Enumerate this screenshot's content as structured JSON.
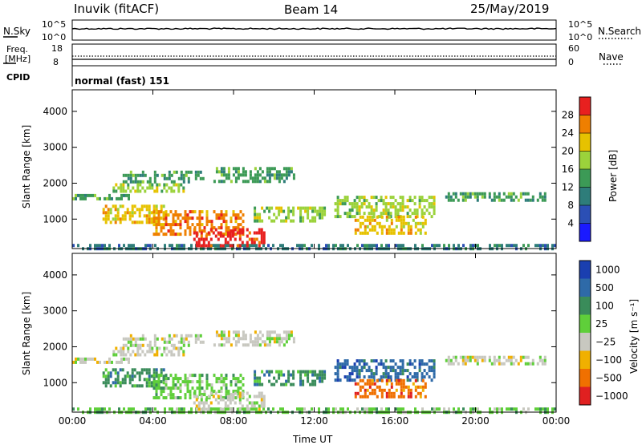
{
  "header": {
    "station": "Inuvik (fitACF)",
    "beam": "Beam 14",
    "date": "25/May/2019"
  },
  "sky_panel": {
    "left_label": "N.Sky",
    "right_label": "N.Search",
    "left_ticks": [
      "10^5",
      "10^0"
    ],
    "right_ticks": [
      "10^5",
      "10^0"
    ]
  },
  "freq_panel": {
    "left_label": "Freq.",
    "left_unit": "[MHz]",
    "right_label": "Nave",
    "left_ticks": [
      "18",
      "8"
    ],
    "right_ticks": [
      "60",
      "0"
    ]
  },
  "cpid": {
    "label": "CPID",
    "value": "normal (fast) 151"
  },
  "chart_data": [
    {
      "type": "heatmap",
      "name": "power",
      "ylabel": "Slant Range [km]",
      "xlabel": "Time UT",
      "x_ticks": [
        "00:00",
        "04:00",
        "08:00",
        "12:00",
        "16:00",
        "20:00",
        "00:00"
      ],
      "y_ticks": [
        "1000",
        "2000",
        "3000",
        "4000"
      ],
      "ylim": [
        180,
        4600
      ],
      "xlim_hours": [
        0,
        24
      ],
      "colorbar": {
        "label": "Power [dB]",
        "ticks": [
          "4",
          "8",
          "12",
          "16",
          "20",
          "24",
          "28"
        ],
        "range": [
          0,
          30
        ],
        "colors": [
          "#1a1aff",
          "#2b4fb5",
          "#2e7d7a",
          "#3c9a56",
          "#9bd23b",
          "#e6c200",
          "#ef7f00",
          "#e8201f"
        ]
      },
      "regions": [
        {
          "t0": 0.0,
          "t1": 24.0,
          "r0": 200,
          "r1": 310,
          "level": 2
        },
        {
          "t0": 2.5,
          "t1": 6.5,
          "r0": 2050,
          "r1": 2350,
          "level": 3
        },
        {
          "t0": 2.0,
          "t1": 5.5,
          "r0": 1750,
          "r1": 2000,
          "level": 4
        },
        {
          "t0": 7.0,
          "t1": 11.0,
          "r0": 2050,
          "r1": 2450,
          "level": 3
        },
        {
          "t0": 0.0,
          "t1": 3.0,
          "r0": 1550,
          "r1": 1700,
          "level": 3
        },
        {
          "t0": 1.5,
          "t1": 4.5,
          "r0": 900,
          "r1": 1400,
          "level": 5
        },
        {
          "t0": 4.0,
          "t1": 8.5,
          "r0": 550,
          "r1": 1250,
          "level": 6
        },
        {
          "t0": 6.0,
          "t1": 9.5,
          "r0": 250,
          "r1": 750,
          "level": 7
        },
        {
          "t0": 9.0,
          "t1": 12.5,
          "r0": 950,
          "r1": 1350,
          "level": 4
        },
        {
          "t0": 13.0,
          "t1": 18.0,
          "r0": 1100,
          "r1": 1650,
          "level": 4
        },
        {
          "t0": 14.0,
          "t1": 17.5,
          "r0": 600,
          "r1": 1100,
          "level": 5
        },
        {
          "t0": 18.5,
          "t1": 23.5,
          "r0": 1550,
          "r1": 1750,
          "level": 3
        }
      ]
    },
    {
      "type": "heatmap",
      "name": "velocity",
      "ylabel": "Slant Range [km]",
      "xlabel": "Time UT",
      "x_ticks": [
        "00:00",
        "04:00",
        "08:00",
        "12:00",
        "16:00",
        "20:00",
        "00:00"
      ],
      "y_ticks": [
        "1000",
        "2000",
        "3000",
        "4000"
      ],
      "ylim": [
        180,
        4600
      ],
      "xlim_hours": [
        0,
        24
      ],
      "colorbar": {
        "label": "Velocity [m s⁻¹]",
        "ticks": [
          "1000",
          "500",
          "100",
          "25",
          "−25",
          "−100",
          "−500",
          "−1000"
        ],
        "colors": [
          "#1a3fb0",
          "#2e6aa8",
          "#3a8c5a",
          "#5fcf3a",
          "#c8c8c0",
          "#f0b000",
          "#f07000",
          "#e02020"
        ]
      },
      "regions": [
        {
          "t0": 0.0,
          "t1": 24.0,
          "r0": 200,
          "r1": 310,
          "level": 3
        },
        {
          "t0": 2.5,
          "t1": 6.5,
          "r0": 2050,
          "r1": 2350,
          "level": 4
        },
        {
          "t0": 2.0,
          "t1": 5.5,
          "r0": 1750,
          "r1": 2000,
          "level": 4
        },
        {
          "t0": 7.0,
          "t1": 11.0,
          "r0": 2050,
          "r1": 2450,
          "level": 4
        },
        {
          "t0": 0.0,
          "t1": 3.0,
          "r0": 1550,
          "r1": 1700,
          "level": 4
        },
        {
          "t0": 1.5,
          "t1": 4.5,
          "r0": 900,
          "r1": 1400,
          "level": 2
        },
        {
          "t0": 4.0,
          "t1": 8.5,
          "r0": 550,
          "r1": 1250,
          "level": 3
        },
        {
          "t0": 6.0,
          "t1": 9.5,
          "r0": 250,
          "r1": 750,
          "level": 4
        },
        {
          "t0": 9.0,
          "t1": 12.5,
          "r0": 950,
          "r1": 1350,
          "level": 2
        },
        {
          "t0": 13.0,
          "t1": 18.0,
          "r0": 1100,
          "r1": 1650,
          "level": 1
        },
        {
          "t0": 14.0,
          "t1": 17.5,
          "r0": 600,
          "r1": 1100,
          "level": 6
        },
        {
          "t0": 18.5,
          "t1": 23.5,
          "r0": 1550,
          "r1": 1750,
          "level": 4
        }
      ]
    }
  ]
}
